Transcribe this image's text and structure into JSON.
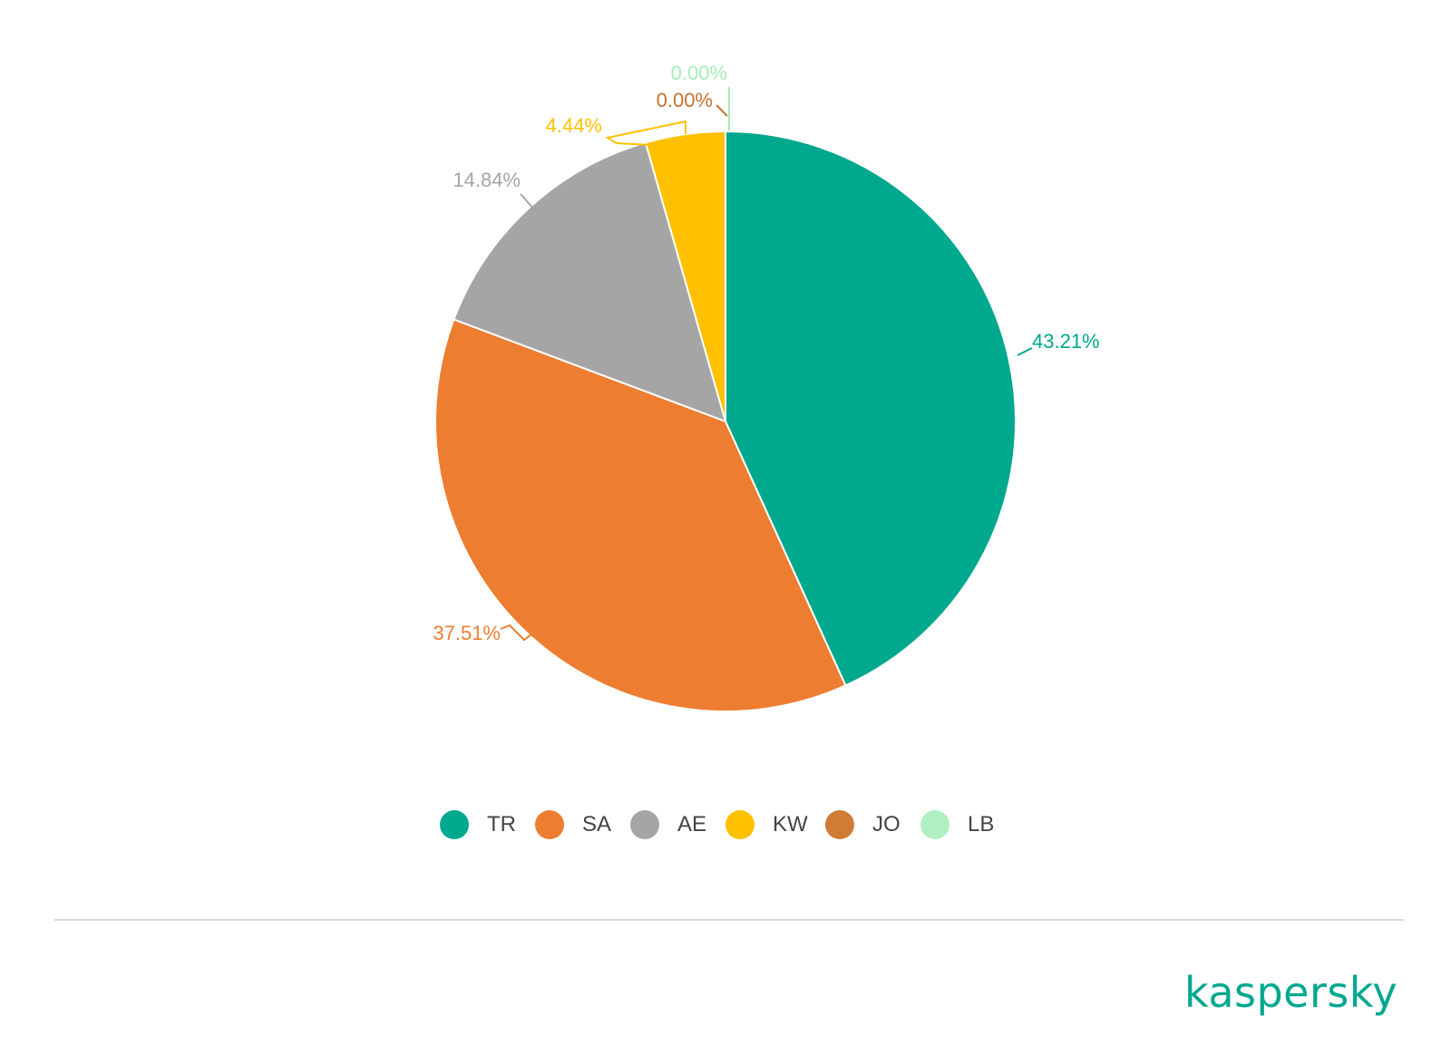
{
  "chart_data": {
    "type": "pie",
    "categories": [
      "TR",
      "SA",
      "AE",
      "KW",
      "JO",
      "LB"
    ],
    "values": [
      43.21,
      37.51,
      14.84,
      4.44,
      0.0,
      0.0
    ],
    "labels": [
      "43.21%",
      "37.51%",
      "14.84%",
      "4.44%",
      "0.00%",
      "0.00%"
    ],
    "colors": [
      "#00a88e",
      "#ed7d31",
      "#a5a5a5",
      "#ffc000",
      "#d07c36",
      "#b0f0c0"
    ],
    "legend": "bottom"
  },
  "brand": {
    "name": "kaspersky",
    "color": "#00a88e"
  }
}
